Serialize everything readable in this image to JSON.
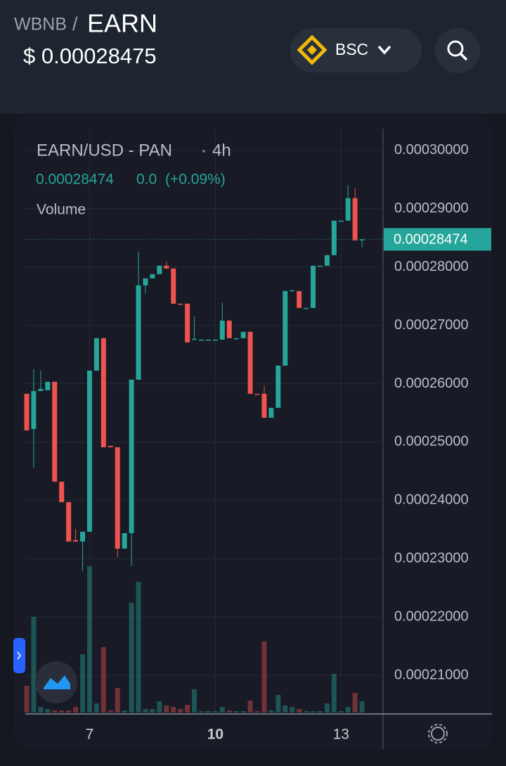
{
  "header": {
    "base": "WBNB",
    "separator": "/",
    "token": "EARN",
    "price": "$ 0.00028475",
    "network": "BSC"
  },
  "chart_data": {
    "type": "candlestick",
    "title": "EARN/USD - PAN",
    "interval": "4h",
    "legend_price": "0.00028474",
    "legend_change": "0.0",
    "legend_change_pct": "(+0.09%)",
    "volume_label": "Volume",
    "categories": [
      null,
      null,
      null,
      null,
      null,
      null,
      null,
      null,
      null,
      "7",
      null,
      null,
      null,
      null,
      null,
      null,
      null,
      null,
      null,
      null,
      null,
      null,
      null,
      null,
      null,
      null,
      null,
      "10",
      null,
      null,
      null,
      null,
      null,
      null,
      null,
      null,
      null,
      null,
      null,
      null,
      null,
      null,
      null,
      null,
      null,
      "13",
      null,
      null,
      null
    ],
    "open": [
      0.00025827,
      0.00025224,
      0.00025875,
      0.00025888,
      0.00026032,
      0.0002432,
      0.0002397,
      0.0002332,
      0.00023295,
      0.00023463,
      0.00026225,
      0.0002678,
      0.00024935,
      0.00024911,
      0.00023174,
      0.00023439,
      0.00026069,
      0.00027685,
      0.00027805,
      0.00027877,
      0.00028022,
      0.00027974,
      0.00027371,
      0.00027371,
      0.00026756,
      0.00026756,
      0.00026756,
      0.00026756,
      0.00026756,
      0.00027082,
      0.0002678,
      0.0002678,
      0.00026889,
      0.00025827,
      0.00025827,
      0.00025417,
      0.00025586,
      0.0002631,
      0.00027588,
      0.00027588,
      0.00027299,
      0.00027299,
      0.00028022,
      0.00028022,
      0.00028203,
      0.00028794,
      0.00028794,
      0.0002918,
      0.00028456
    ],
    "high": [
      0.00025827,
      0.00026249,
      0.00026225,
      0.00026032,
      0.00026032,
      0.0002432,
      0.0002397,
      0.00023512,
      0.00023463,
      0.00026225,
      0.0002678,
      0.0002678,
      0.00024935,
      0.00024911,
      0.00023439,
      0.00026069,
      0.00028263,
      0.00027805,
      0.00027877,
      0.00028022,
      0.00028095,
      0.00027974,
      0.00027371,
      0.00027371,
      0.00027154,
      0.00026756,
      0.00026756,
      0.00026756,
      0.00027395,
      0.00027082,
      0.0002678,
      0.00026889,
      0.00026889,
      0.00025827,
      0.00025972,
      0.00025586,
      0.0002631,
      0.00027588,
      0.000276,
      0.00027588,
      0.00027299,
      0.00028022,
      0.00028022,
      0.00028203,
      0.00028794,
      0.00028794,
      0.00029397,
      0.00029349,
      0.00028474
    ],
    "low": [
      0.000252,
      0.00024561,
      0.00025875,
      0.00025888,
      0.0002432,
      0.0002397,
      0.00023295,
      0.00023295,
      0.00022788,
      0.00023463,
      0.00026225,
      0.00024911,
      0.00024911,
      0.00023029,
      0.00023174,
      0.00022873,
      0.00026069,
      0.0002754,
      0.00027805,
      0.00027877,
      0.00027974,
      0.00027371,
      0.0002736,
      0.00026708,
      0.00026756,
      0.00026756,
      0.00026756,
      0.00026756,
      0.00026756,
      0.0002678,
      0.0002678,
      0.0002678,
      0.00025827,
      0.00025815,
      0.00025417,
      0.00025417,
      0.00025586,
      0.0002631,
      0.00027588,
      0.00027299,
      0.00027299,
      0.00027299,
      0.00028022,
      0.00028022,
      0.00028203,
      0.00028794,
      0.00028794,
      0.00028456,
      0.00028336
    ],
    "close": [
      0.000252,
      0.00025875,
      0.00025912,
      0.00026032,
      0.0002432,
      0.0002397,
      0.00023295,
      0.00023295,
      0.00023463,
      0.00026225,
      0.0002678,
      0.00024911,
      0.00024911,
      0.00023174,
      0.00023439,
      0.00026069,
      0.00027685,
      0.00027805,
      0.00027877,
      0.00028022,
      0.00027974,
      0.00027371,
      0.0002736,
      0.00026708,
      0.00026768,
      0.00026756,
      0.00026756,
      0.00026756,
      0.00027082,
      0.0002678,
      0.0002678,
      0.00026889,
      0.00025827,
      0.00025815,
      0.00025417,
      0.00025586,
      0.0002631,
      0.00027588,
      0.000276,
      0.00027299,
      0.00027299,
      0.00028022,
      0.00028022,
      0.00028203,
      0.00028794,
      0.00028794,
      0.0002918,
      0.00028456,
      0.00028474
    ],
    "volume": [
      38,
      136,
      8,
      5,
      3,
      3,
      3,
      8,
      83,
      208,
      13,
      93,
      3,
      35,
      3,
      156,
      186,
      5,
      5,
      16,
      10,
      8,
      5,
      11,
      33,
      2,
      2,
      2,
      8,
      3,
      2,
      2,
      17,
      2,
      101,
      3,
      25,
      10,
      8,
      5,
      2,
      2,
      2,
      13,
      55,
      2,
      8,
      28,
      16
    ],
    "up_color": "#26a69a",
    "down_color": "#ef5350",
    "ylim": [
      0.0002034,
      0.0003037
    ],
    "yticks": [
      {
        "value": 0.00021,
        "label": "0.00021000"
      },
      {
        "value": 0.00022,
        "label": "0.00022000"
      },
      {
        "value": 0.00023,
        "label": "0.00023000"
      },
      {
        "value": 0.00024,
        "label": "0.00024000"
      },
      {
        "value": 0.00025,
        "label": "0.00025000"
      },
      {
        "value": 0.00026,
        "label": "0.00026000"
      },
      {
        "value": 0.00027,
        "label": "0.00027000"
      },
      {
        "value": 0.00028,
        "label": "0.00028000"
      },
      {
        "value": 0.00029,
        "label": "0.00029000"
      },
      {
        "value": 0.0003,
        "label": "0.00030000"
      }
    ],
    "last_price": {
      "value": 0.00028474,
      "label": "0.00028474"
    },
    "grid": true
  }
}
